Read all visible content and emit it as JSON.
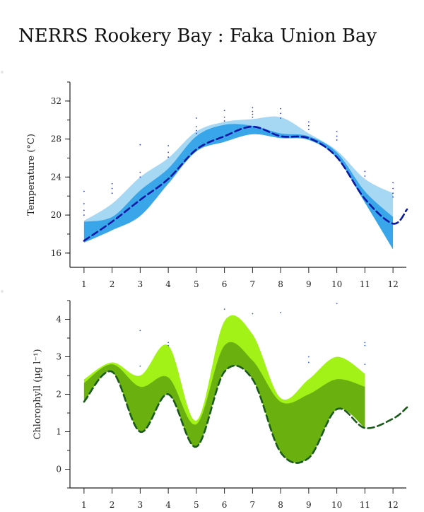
{
  "title": "NERRS Rookery Bay : Faka Union Bay",
  "chart_data": [
    {
      "type": "area",
      "id": "temperature",
      "ylabel": "Temperature (°C)",
      "xticks": [
        1,
        2,
        3,
        4,
        5,
        6,
        7,
        8,
        9,
        10,
        11,
        12
      ],
      "yticks": [
        16,
        20,
        24,
        28,
        32
      ],
      "xlim": [
        0.5,
        12.5
      ],
      "ylim": [
        14.5,
        34
      ],
      "colors": {
        "outer": "#a7d8f3",
        "inner": "#3aa6ea",
        "mean": "#0b18a6",
        "points": "#2b3dd6"
      },
      "outer_band": {
        "x": [
          1,
          2,
          3,
          4,
          5,
          6,
          7,
          8,
          9,
          10,
          11,
          12
        ],
        "lower": [
          17.2,
          18.6,
          20.2,
          23.6,
          26.8,
          27.8,
          28.6,
          28.2,
          28.0,
          26.2,
          22.0,
          18.5
        ],
        "upper": [
          19.4,
          21.2,
          24.0,
          26.0,
          28.8,
          29.8,
          30.1,
          30.3,
          28.6,
          26.8,
          23.8,
          22.3
        ]
      },
      "inner_band": {
        "x": [
          1,
          2,
          3,
          4,
          5,
          6,
          7,
          8,
          9,
          10,
          11,
          12
        ],
        "lower": [
          17.1,
          18.4,
          19.9,
          23.3,
          26.7,
          27.7,
          28.5,
          28.1,
          27.9,
          26.0,
          21.3,
          16.4
        ],
        "upper": [
          19.3,
          19.8,
          22.6,
          24.9,
          28.3,
          29.5,
          29.4,
          28.6,
          28.3,
          26.6,
          22.5,
          19.8
        ]
      },
      "mean": {
        "x": [
          1,
          2,
          3,
          4,
          5,
          6,
          7,
          8,
          9,
          10,
          11,
          12,
          12.5
        ],
        "y": [
          17.3,
          19.3,
          21.6,
          23.8,
          26.9,
          28.3,
          29.3,
          28.3,
          28.1,
          26.1,
          21.7,
          19.1,
          20.6
        ]
      },
      "points": [
        [
          1,
          22.5
        ],
        [
          1,
          21.2
        ],
        [
          1,
          20.5
        ],
        [
          1,
          20.0
        ],
        [
          2,
          23.3
        ],
        [
          2,
          22.8
        ],
        [
          2,
          22.3
        ],
        [
          3,
          27.4
        ],
        [
          3,
          24.5
        ],
        [
          3,
          24.0
        ],
        [
          4,
          27.3
        ],
        [
          4,
          26.6
        ],
        [
          4,
          26.1
        ],
        [
          5,
          30.2
        ],
        [
          5,
          29.3
        ],
        [
          5,
          28.9
        ],
        [
          5,
          28.6
        ],
        [
          6,
          31.0
        ],
        [
          6,
          30.3
        ],
        [
          6,
          29.9
        ],
        [
          7,
          31.3
        ],
        [
          7,
          30.9
        ],
        [
          7,
          30.6
        ],
        [
          7,
          30.3
        ],
        [
          8,
          31.2
        ],
        [
          8,
          30.7
        ],
        [
          8,
          30.2
        ],
        [
          9,
          29.8
        ],
        [
          9,
          29.4
        ],
        [
          9,
          29.0
        ],
        [
          10,
          28.8
        ],
        [
          10,
          28.3
        ],
        [
          10,
          27.9
        ],
        [
          11,
          24.6
        ],
        [
          11,
          24.1
        ],
        [
          12,
          23.4
        ],
        [
          12,
          22.8
        ],
        [
          12,
          22.3
        ],
        [
          12,
          21.9
        ]
      ]
    },
    {
      "type": "area",
      "id": "chlorophyll",
      "ylabel": "Chlorophyll (µg l⁻¹)",
      "xticks": [
        1,
        2,
        3,
        4,
        5,
        6,
        7,
        8,
        9,
        10,
        11,
        12
      ],
      "yticks": [
        0,
        1,
        2,
        3,
        4
      ],
      "xlim": [
        0.5,
        12.5
      ],
      "ylim": [
        -0.5,
        4.5
      ],
      "colors": {
        "outer": "#a2f218",
        "inner": "#6ab10f",
        "mean": "#1a5a1a",
        "points": "#3a5fd0"
      },
      "outer_band": {
        "x": [
          1,
          2,
          3,
          4,
          5,
          6,
          7,
          8,
          9,
          10,
          11
        ],
        "lower": [
          1.8,
          2.6,
          1.0,
          2.0,
          0.6,
          2.6,
          2.4,
          0.45,
          0.3,
          1.6,
          1.1
        ],
        "upper": [
          2.4,
          2.85,
          2.5,
          3.3,
          1.3,
          3.95,
          3.6,
          1.9,
          2.4,
          3.0,
          2.55
        ]
      },
      "inner_band": {
        "x": [
          1,
          2,
          3,
          4,
          5,
          6,
          7,
          8,
          9,
          10,
          11
        ],
        "lower": [
          1.8,
          2.6,
          1.0,
          2.0,
          0.6,
          2.6,
          2.4,
          0.45,
          0.3,
          1.6,
          1.1
        ],
        "upper": [
          2.3,
          2.8,
          2.2,
          2.45,
          1.2,
          3.3,
          2.9,
          1.8,
          2.0,
          2.4,
          2.2
        ]
      },
      "mean": {
        "x": [
          1,
          2,
          3,
          4,
          5,
          6,
          7,
          8,
          9,
          10,
          11,
          12,
          12.5
        ],
        "y": [
          1.8,
          2.6,
          1.0,
          2.0,
          0.6,
          2.6,
          2.4,
          0.45,
          0.3,
          1.6,
          1.1,
          1.35,
          1.65
        ]
      },
      "points": [
        [
          3,
          3.7
        ],
        [
          3,
          2.75
        ],
        [
          4,
          3.38
        ],
        [
          4,
          3.3
        ],
        [
          6,
          4.27
        ],
        [
          7,
          4.15
        ],
        [
          8,
          4.18
        ],
        [
          9,
          3.0
        ],
        [
          9,
          2.85
        ],
        [
          10,
          4.42
        ],
        [
          11,
          3.38
        ],
        [
          11,
          3.3
        ],
        [
          11,
          2.8
        ]
      ]
    }
  ]
}
